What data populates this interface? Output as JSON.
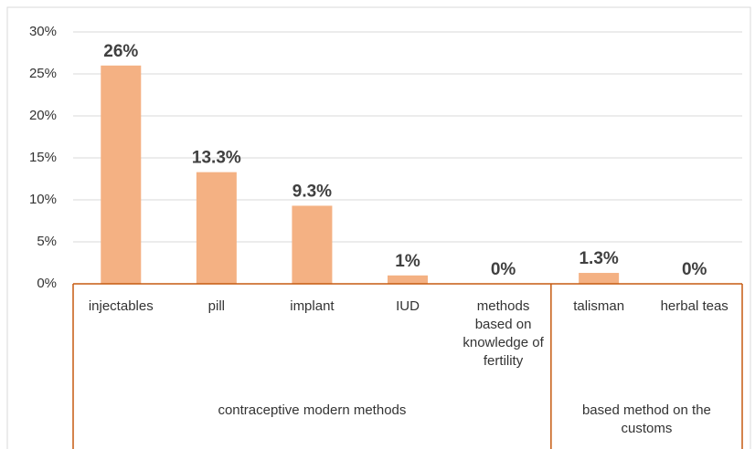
{
  "chart_data": {
    "type": "bar",
    "categories": [
      "injectables",
      "pill",
      "implant",
      "IUD",
      "methods based on knowledge of fertility",
      "talisman",
      "herbal teas"
    ],
    "values": [
      26,
      13.3,
      9.3,
      1,
      0,
      1.3,
      0
    ],
    "value_labels": [
      "26%",
      "13.3%",
      "9.3%",
      "1%",
      "0%",
      "1.3%",
      "0%"
    ],
    "groups": [
      {
        "label": "contraceptive modern methods",
        "size": 5
      },
      {
        "label": "based method on the customs",
        "size": 2
      }
    ],
    "color": "#f4b183",
    "ylim": [
      0,
      30
    ],
    "yticks": [
      {
        "value": 0,
        "label": "0%"
      },
      {
        "value": 5,
        "label": "5%"
      },
      {
        "value": 10,
        "label": "10%"
      },
      {
        "value": 15,
        "label": "15%"
      },
      {
        "value": 20,
        "label": "20%"
      },
      {
        "value": 25,
        "label": "25%"
      },
      {
        "value": 30,
        "label": "30%"
      }
    ],
    "grid": true
  }
}
